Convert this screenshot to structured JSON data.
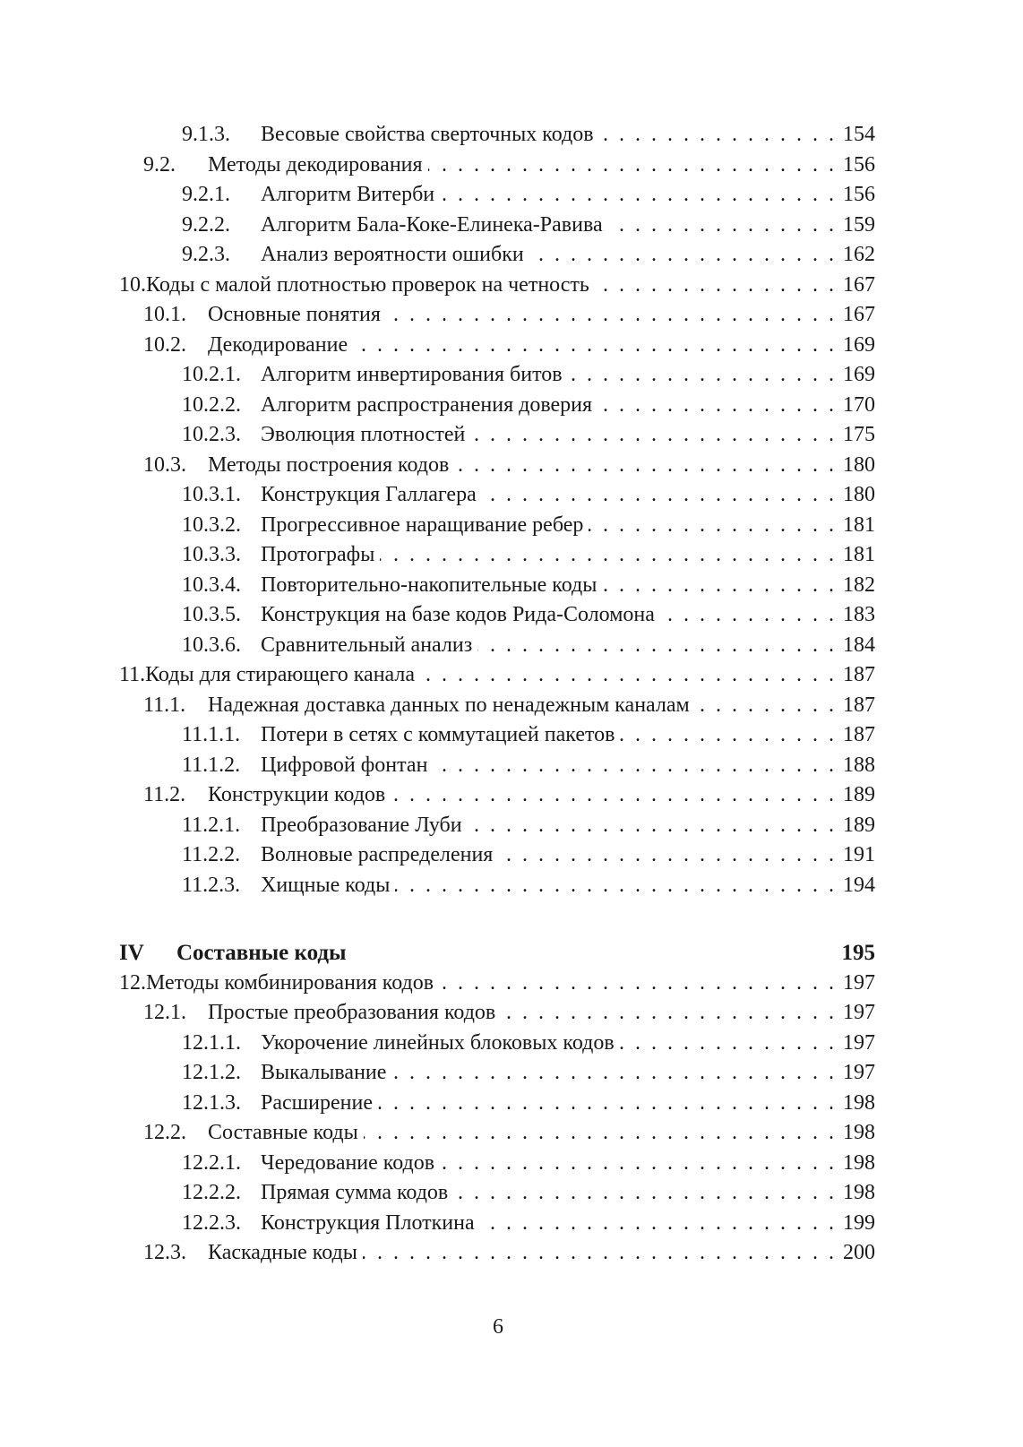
{
  "entries": [
    {
      "level": 3,
      "num": "9.1.3.",
      "title": "Весовые свойства сверточных кодов",
      "page": "154"
    },
    {
      "level": 2,
      "num": "9.2.",
      "title": "Методы декодирования",
      "page": "156"
    },
    {
      "level": 3,
      "num": "9.2.1.",
      "title": "Алгоритм Витерби",
      "page": "156"
    },
    {
      "level": 3,
      "num": "9.2.2.",
      "title": "Алгоритм Бала-Коке-Елинека-Равива",
      "page": "159"
    },
    {
      "level": 3,
      "num": "9.2.3.",
      "title": "Анализ вероятности ошибки",
      "page": "162"
    },
    {
      "level": 1,
      "num": "10.",
      "title": "Коды с малой плотностью проверок на четность",
      "page": "167"
    },
    {
      "level": 2,
      "num": "10.1.",
      "title": "Основные понятия",
      "page": "167"
    },
    {
      "level": 2,
      "num": "10.2.",
      "title": "Декодирование",
      "page": "169"
    },
    {
      "level": 3,
      "num": "10.2.1.",
      "title": "Алгоритм инвертирования битов",
      "page": "169"
    },
    {
      "level": 3,
      "num": "10.2.2.",
      "title": "Алгоритм распространения доверия",
      "page": "170"
    },
    {
      "level": 3,
      "num": "10.2.3.",
      "title": "Эволюция плотностей",
      "page": "175"
    },
    {
      "level": 2,
      "num": "10.3.",
      "title": "Методы построения кодов",
      "page": "180"
    },
    {
      "level": 3,
      "num": "10.3.1.",
      "title": "Конструкция Галлагера",
      "page": "180"
    },
    {
      "level": 3,
      "num": "10.3.2.",
      "title": "Прогрессивное наращивание ребер",
      "page": "181"
    },
    {
      "level": 3,
      "num": "10.3.3.",
      "title": "Протографы",
      "page": "181"
    },
    {
      "level": 3,
      "num": "10.3.4.",
      "title": "Повторительно-накопительные коды",
      "page": "182"
    },
    {
      "level": 3,
      "num": "10.3.5.",
      "title": "Конструкция на базе кодов Рида-Соломона",
      "page": "183"
    },
    {
      "level": 3,
      "num": "10.3.6.",
      "title": "Сравнительный анализ",
      "page": "184"
    },
    {
      "level": 1,
      "num": "11.",
      "title": "Коды для стирающего канала",
      "page": "187"
    },
    {
      "level": 2,
      "num": "11.1.",
      "title": "Надежная доставка данных по ненадежным каналам",
      "page": "187"
    },
    {
      "level": 3,
      "num": "11.1.1.",
      "title": "Потери в сетях с коммутацией пакетов",
      "page": "187"
    },
    {
      "level": 3,
      "num": "11.1.2.",
      "title": "Цифровой фонтан",
      "page": "188"
    },
    {
      "level": 2,
      "num": "11.2.",
      "title": "Конструкции кодов",
      "page": "189"
    },
    {
      "level": 3,
      "num": "11.2.1.",
      "title": "Преобразование Луби",
      "page": "189"
    },
    {
      "level": 3,
      "num": "11.2.2.",
      "title": "Волновые распределения",
      "page": "191"
    },
    {
      "level": 3,
      "num": "11.2.3.",
      "title": "Хищные коды",
      "page": "194"
    },
    {
      "level": 0,
      "num": "IV",
      "title": "Составные коды",
      "page": "195"
    },
    {
      "level": 1,
      "num": "12.",
      "title": "Методы комбинирования кодов",
      "page": "197"
    },
    {
      "level": 2,
      "num": "12.1.",
      "title": "Простые преобразования кодов",
      "page": "197"
    },
    {
      "level": 3,
      "num": "12.1.1.",
      "title": "Укорочение линейных блоковых кодов",
      "page": "197"
    },
    {
      "level": 3,
      "num": "12.1.2.",
      "title": "Выкалывание",
      "page": "197"
    },
    {
      "level": 3,
      "num": "12.1.3.",
      "title": "Расширение",
      "page": "198"
    },
    {
      "level": 2,
      "num": "12.2.",
      "title": "Составные коды",
      "page": "198"
    },
    {
      "level": 3,
      "num": "12.2.1.",
      "title": "Чередование кодов",
      "page": "198"
    },
    {
      "level": 3,
      "num": "12.2.2.",
      "title": "Прямая сумма кодов",
      "page": "198"
    },
    {
      "level": 3,
      "num": "12.2.3.",
      "title": "Конструкция Плоткина",
      "page": "199"
    },
    {
      "level": 2,
      "num": "12.3.",
      "title": "Каскадные коды",
      "page": "200"
    }
  ],
  "page_number": "6"
}
